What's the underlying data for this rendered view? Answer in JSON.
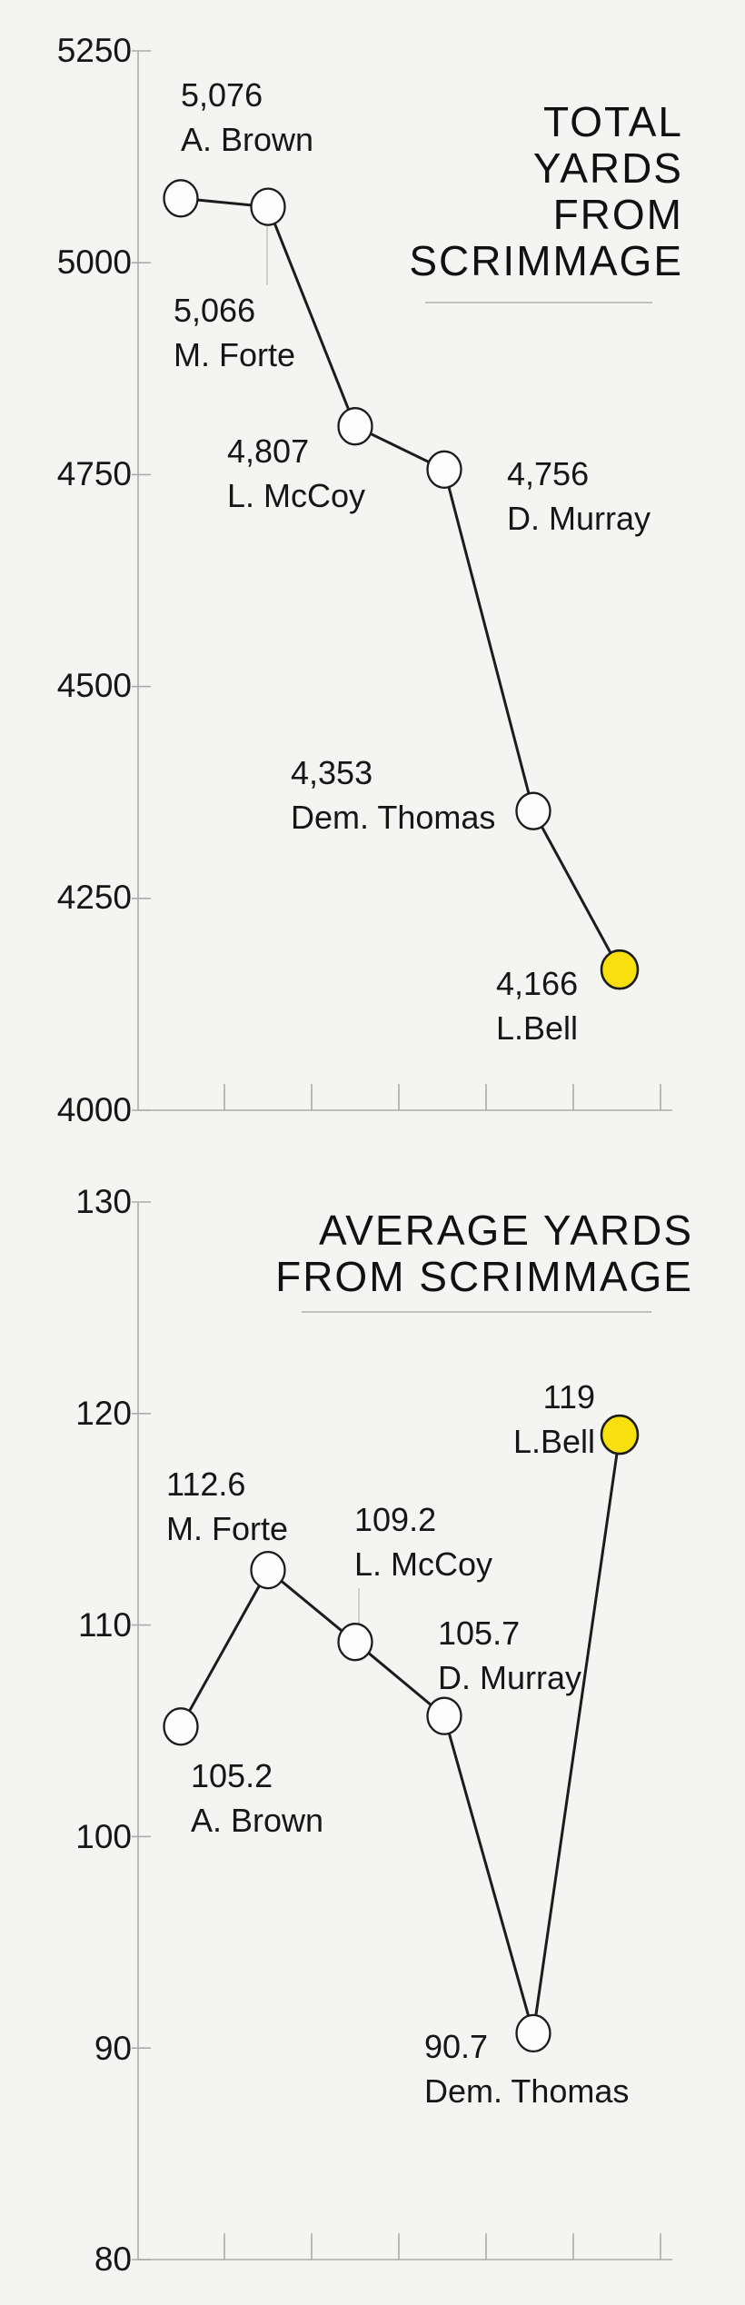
{
  "colors": {
    "background": "#f4f4f2",
    "line": "#1c1c1c",
    "dot_fill": "#fdfdfd",
    "highlight": "#f8e00f",
    "axis": "#ababab",
    "leader": "#c4c4c2",
    "underline": "#c1c1bf",
    "text": "#161616"
  },
  "chart_data": [
    {
      "type": "line",
      "title": "TOTAL YARDS FROM SCRIMMAGE",
      "title_lines": [
        "TOTAL",
        "YARDS",
        "FROM",
        "SCRIMMAGE"
      ],
      "categories": [
        "A. Brown",
        "M. Forte",
        "L. McCoy",
        "D. Murray",
        "Dem. Thomas",
        "L.Bell"
      ],
      "values": [
        5076,
        5066,
        4807,
        4756,
        4353,
        4166
      ],
      "point_value_labels": [
        "5,076",
        "5,066",
        "4,807",
        "4,756",
        "4,353",
        "4,166"
      ],
      "highlight_index": 5,
      "xlabel": "",
      "ylabel": "",
      "ylim": [
        4000,
        5250
      ],
      "y_ticks": [
        5250,
        5000,
        4750,
        4500,
        4250,
        4000
      ],
      "y_tick_labels": [
        "5250",
        "5000",
        "4750",
        "4500",
        "4250",
        "4000"
      ],
      "grid": false,
      "legend": false
    },
    {
      "type": "line",
      "title": "AVERAGE YARDS FROM SCRIMMAGE",
      "title_lines": [
        "AVERAGE YARDS",
        "FROM SCRIMMAGE"
      ],
      "categories": [
        "A. Brown",
        "M. Forte",
        "L. McCoy",
        "D. Murray",
        "Dem. Thomas",
        "L.Bell"
      ],
      "values": [
        105.2,
        112.6,
        109.2,
        105.7,
        90.7,
        119
      ],
      "point_value_labels": [
        "105.2",
        "112.6",
        "109.2",
        "105.7",
        "90.7",
        "119"
      ],
      "highlight_index": 5,
      "xlabel": "",
      "ylabel": "",
      "ylim": [
        80,
        130
      ],
      "y_ticks": [
        130,
        120,
        110,
        100,
        90,
        80
      ],
      "y_tick_labels": [
        "130",
        "120",
        "110",
        "100",
        "90",
        "80"
      ],
      "grid": false,
      "legend": false
    }
  ]
}
